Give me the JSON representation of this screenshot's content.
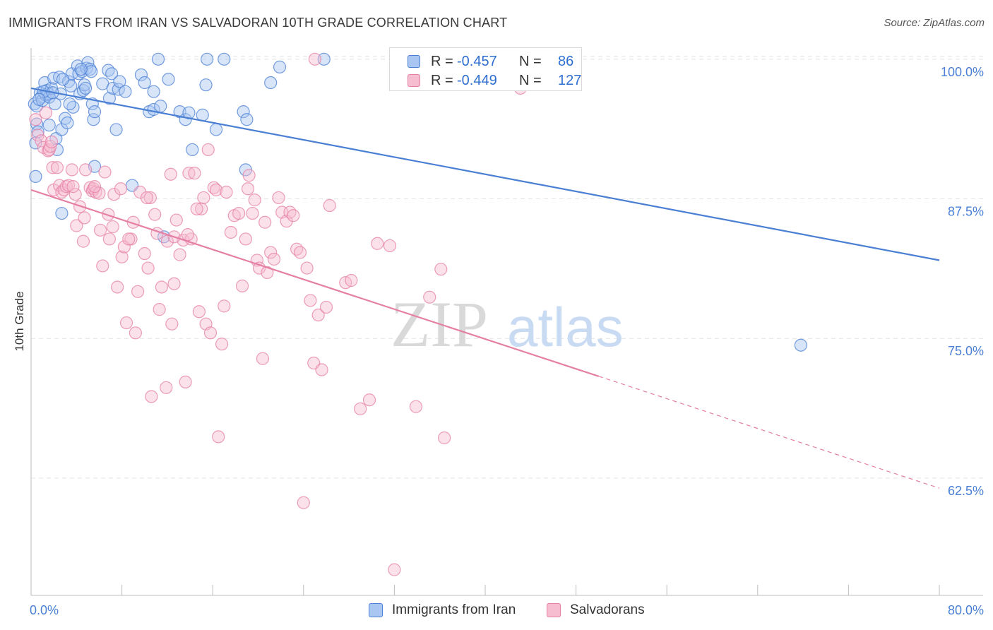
{
  "header": {
    "title": "IMMIGRANTS FROM IRAN VS SALVADORAN 10TH GRADE CORRELATION CHART",
    "source": "Source: ZipAtlas.com"
  },
  "watermark": {
    "part1": "ZIP",
    "part2": "atlas"
  },
  "legend": {
    "r_label": "R =",
    "n_label": "N =",
    "rows": [
      {
        "r": "-0.457",
        "n": "86",
        "color": "#4a7fd4"
      },
      {
        "r": "-0.449",
        "n": "127",
        "color": "#e57fa4"
      }
    ]
  },
  "chart_data": {
    "type": "scatter",
    "title": "IMMIGRANTS FROM IRAN VS SALVADORAN 10TH GRADE CORRELATION CHART",
    "xlabel": "",
    "ylabel": "10th Grade",
    "xlim": [
      0,
      80
    ],
    "ylim": [
      52,
      101
    ],
    "x_tick_labels": [
      "0.0%",
      "80.0%"
    ],
    "y_ticks": [
      100,
      87.5,
      75,
      62.5
    ],
    "y_tick_labels": [
      "100.0%",
      "87.5%",
      "75.0%",
      "62.5%"
    ],
    "grid": true,
    "legend_position": "top-center",
    "series": [
      {
        "name": "Immigrants from Iran",
        "color": "#4a7fd4",
        "fill": "#a9c6f2",
        "trend": {
          "x": [
            0,
            80
          ],
          "y": [
            97.4,
            82.0
          ],
          "dashed_extension": false
        },
        "points": [
          [
            0.3,
            96.0
          ],
          [
            0.5,
            95.8
          ],
          [
            0.5,
            94.2
          ],
          [
            0.6,
            93.5
          ],
          [
            0.4,
            92.5
          ],
          [
            0.8,
            97.0
          ],
          [
            0.9,
            96.6
          ],
          [
            1.0,
            96.3
          ],
          [
            1.2,
            97.9
          ],
          [
            1.3,
            96.8
          ],
          [
            1.4,
            97.2
          ],
          [
            1.5,
            96.9
          ],
          [
            1.6,
            96.6
          ],
          [
            1.6,
            94.1
          ],
          [
            1.8,
            97.4
          ],
          [
            2.0,
            98.3
          ],
          [
            2.1,
            96.0
          ],
          [
            2.2,
            92.9
          ],
          [
            2.3,
            91.9
          ],
          [
            2.5,
            98.4
          ],
          [
            2.6,
            96.9
          ],
          [
            2.7,
            93.7
          ],
          [
            3.0,
            94.7
          ],
          [
            3.2,
            94.3
          ],
          [
            3.3,
            98.0
          ],
          [
            3.5,
            97.6
          ],
          [
            3.6,
            98.7
          ],
          [
            3.7,
            95.7
          ],
          [
            4.1,
            99.4
          ],
          [
            4.2,
            98.7
          ],
          [
            4.3,
            96.9
          ],
          [
            4.5,
            98.9
          ],
          [
            4.6,
            97.2
          ],
          [
            4.7,
            97.7
          ],
          [
            4.8,
            97.4
          ],
          [
            4.9,
            99.2
          ],
          [
            5.0,
            99.7
          ],
          [
            5.2,
            99.1
          ],
          [
            5.3,
            98.9
          ],
          [
            5.4,
            96.0
          ],
          [
            5.5,
            94.6
          ],
          [
            5.6,
            90.4
          ],
          [
            5.6,
            95.3
          ],
          [
            6.3,
            97.8
          ],
          [
            6.8,
            99.0
          ],
          [
            6.9,
            96.5
          ],
          [
            7.1,
            98.7
          ],
          [
            7.2,
            97.4
          ],
          [
            7.5,
            93.7
          ],
          [
            7.7,
            97.3
          ],
          [
            7.8,
            98.0
          ],
          [
            8.3,
            97.1
          ],
          [
            8.9,
            88.7
          ],
          [
            9.7,
            98.6
          ],
          [
            10.0,
            97.9
          ],
          [
            10.4,
            95.3
          ],
          [
            10.8,
            97.1
          ],
          [
            10.8,
            95.5
          ],
          [
            11.2,
            100.0
          ],
          [
            11.4,
            95.8
          ],
          [
            11.7,
            84.1
          ],
          [
            12.1,
            98.2
          ],
          [
            13.1,
            95.3
          ],
          [
            13.6,
            94.6
          ],
          [
            13.9,
            95.2
          ],
          [
            14.2,
            91.9
          ],
          [
            15.1,
            95.0
          ],
          [
            15.4,
            97.7
          ],
          [
            15.5,
            100.0
          ],
          [
            16.3,
            93.7
          ],
          [
            17.0,
            100.0
          ],
          [
            18.7,
            95.3
          ],
          [
            18.9,
            90.1
          ],
          [
            19.0,
            94.6
          ],
          [
            21.1,
            97.9
          ],
          [
            21.9,
            99.3
          ],
          [
            25.8,
            100.0
          ],
          [
            67.8,
            74.4
          ],
          [
            0.4,
            89.5
          ],
          [
            2.7,
            86.2
          ],
          [
            1.1,
            97.1
          ],
          [
            3.4,
            96.0
          ],
          [
            4.4,
            99.1
          ],
          [
            1.9,
            97.0
          ],
          [
            0.7,
            96.4
          ],
          [
            2.8,
            98.2
          ]
        ]
      },
      {
        "name": "Salvadorans",
        "color": "#e57fa4",
        "fill": "#f6bdd0",
        "trend": {
          "x": [
            0,
            80
          ],
          "y": [
            88.3,
            61.6
          ],
          "solid_until_x": 50,
          "dashed_extension": true
        },
        "points": [
          [
            0.4,
            94.6
          ],
          [
            0.6,
            93.2
          ],
          [
            0.9,
            92.7
          ],
          [
            1.1,
            92.1
          ],
          [
            1.3,
            95.2
          ],
          [
            1.5,
            91.8
          ],
          [
            1.6,
            91.9
          ],
          [
            1.7,
            92.2
          ],
          [
            1.9,
            90.3
          ],
          [
            2.0,
            88.3
          ],
          [
            2.3,
            90.3
          ],
          [
            2.5,
            88.7
          ],
          [
            2.7,
            88.1
          ],
          [
            2.9,
            88.3
          ],
          [
            3.1,
            88.6
          ],
          [
            3.3,
            88.7
          ],
          [
            3.6,
            90.1
          ],
          [
            3.9,
            87.9
          ],
          [
            4.0,
            85.1
          ],
          [
            4.3,
            86.8
          ],
          [
            4.6,
            83.7
          ],
          [
            4.7,
            85.8
          ],
          [
            4.8,
            90.1
          ],
          [
            5.2,
            88.5
          ],
          [
            5.4,
            88.2
          ],
          [
            5.5,
            88.4
          ],
          [
            5.7,
            88.1
          ],
          [
            6.0,
            88.0
          ],
          [
            6.1,
            84.7
          ],
          [
            6.3,
            81.5
          ],
          [
            6.5,
            89.9
          ],
          [
            6.8,
            86.1
          ],
          [
            6.9,
            83.9
          ],
          [
            7.2,
            85.0
          ],
          [
            7.3,
            87.9
          ],
          [
            7.6,
            79.6
          ],
          [
            8.0,
            82.3
          ],
          [
            8.2,
            83.2
          ],
          [
            8.4,
            76.4
          ],
          [
            8.8,
            83.9
          ],
          [
            9.0,
            85.4
          ],
          [
            9.2,
            75.5
          ],
          [
            9.4,
            79.2
          ],
          [
            9.6,
            88.1
          ],
          [
            10.0,
            82.6
          ],
          [
            10.3,
            81.3
          ],
          [
            10.5,
            87.6
          ],
          [
            10.6,
            69.8
          ],
          [
            10.9,
            86.1
          ],
          [
            11.1,
            84.4
          ],
          [
            11.3,
            77.6
          ],
          [
            11.5,
            79.6
          ],
          [
            11.9,
            70.6
          ],
          [
            12.0,
            83.7
          ],
          [
            12.3,
            89.7
          ],
          [
            12.4,
            76.3
          ],
          [
            12.6,
            79.9
          ],
          [
            12.8,
            85.6
          ],
          [
            13.1,
            82.5
          ],
          [
            13.4,
            83.8
          ],
          [
            13.6,
            71.1
          ],
          [
            13.9,
            89.8
          ],
          [
            14.1,
            83.9
          ],
          [
            14.4,
            89.8
          ],
          [
            14.8,
            77.4
          ],
          [
            15.0,
            86.6
          ],
          [
            15.2,
            87.6
          ],
          [
            15.4,
            76.3
          ],
          [
            15.6,
            91.9
          ],
          [
            15.8,
            75.5
          ],
          [
            16.1,
            88.5
          ],
          [
            16.3,
            88.3
          ],
          [
            16.5,
            66.2
          ],
          [
            16.8,
            74.5
          ],
          [
            17.0,
            77.9
          ],
          [
            17.2,
            88.1
          ],
          [
            17.6,
            84.5
          ],
          [
            17.9,
            86.0
          ],
          [
            18.3,
            86.2
          ],
          [
            18.6,
            79.7
          ],
          [
            18.9,
            83.9
          ],
          [
            19.1,
            88.4
          ],
          [
            19.5,
            86.2
          ],
          [
            19.7,
            87.4
          ],
          [
            19.9,
            82.0
          ],
          [
            20.1,
            81.3
          ],
          [
            20.4,
            73.2
          ],
          [
            20.8,
            80.9
          ],
          [
            21.1,
            82.7
          ],
          [
            21.4,
            82.1
          ],
          [
            21.8,
            87.6
          ],
          [
            22.1,
            86.3
          ],
          [
            22.5,
            85.5
          ],
          [
            22.8,
            86.3
          ],
          [
            23.1,
            86.0
          ],
          [
            23.4,
            83.0
          ],
          [
            23.7,
            82.7
          ],
          [
            24.0,
            60.3
          ],
          [
            24.3,
            81.3
          ],
          [
            24.6,
            78.4
          ],
          [
            24.9,
            72.8
          ],
          [
            25.3,
            77.1
          ],
          [
            25.6,
            72.2
          ],
          [
            26.0,
            77.8
          ],
          [
            26.3,
            86.9
          ],
          [
            27.7,
            80.0
          ],
          [
            28.2,
            80.2
          ],
          [
            29.0,
            68.7
          ],
          [
            29.8,
            69.5
          ],
          [
            30.5,
            83.5
          ],
          [
            31.6,
            83.3
          ],
          [
            32.0,
            54.3
          ],
          [
            33.9,
            68.9
          ],
          [
            35.1,
            78.7
          ],
          [
            36.1,
            81.2
          ],
          [
            36.4,
            66.1
          ],
          [
            43.1,
            97.4
          ],
          [
            25.0,
            100.0
          ],
          [
            12.6,
            84.1
          ],
          [
            13.8,
            84.3
          ],
          [
            5.6,
            88.6
          ],
          [
            3.7,
            88.6
          ],
          [
            1.8,
            92.6
          ],
          [
            8.6,
            83.9
          ],
          [
            14.6,
            86.6
          ],
          [
            20.6,
            85.4
          ],
          [
            7.9,
            88.4
          ],
          [
            10.2,
            87.6
          ],
          [
            19.2,
            89.6
          ]
        ]
      }
    ]
  },
  "bottom_legend": {
    "items": [
      {
        "label": "Immigrants from Iran",
        "color": "#4a7fd4",
        "fill": "#a9c6f2"
      },
      {
        "label": "Salvadorans",
        "color": "#e57fa4",
        "fill": "#f6bdd0"
      }
    ]
  }
}
